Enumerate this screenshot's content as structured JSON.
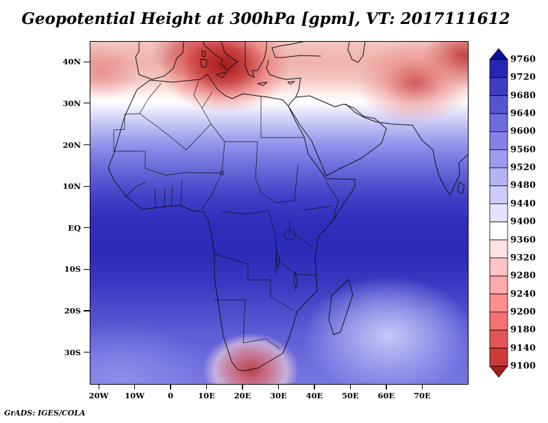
{
  "title": "Geopotential Height at 300hPa [gpm], VT: 2017111612",
  "credit": "GrADS: IGES/COLA",
  "map": {
    "lat_ticks": [
      {
        "label": "40N",
        "lat": 40
      },
      {
        "label": "30N",
        "lat": 30
      },
      {
        "label": "20N",
        "lat": 20
      },
      {
        "label": "10N",
        "lat": 10
      },
      {
        "label": "EQ",
        "lat": 0
      },
      {
        "label": "10S",
        "lat": -10
      },
      {
        "label": "20S",
        "lat": -20
      },
      {
        "label": "30S",
        "lat": -30
      }
    ],
    "lon_ticks": [
      {
        "label": "20W",
        "lon": -20
      },
      {
        "label": "10W",
        "lon": -10
      },
      {
        "label": "0",
        "lon": 0
      },
      {
        "label": "10E",
        "lon": 10
      },
      {
        "label": "20E",
        "lon": 20
      },
      {
        "label": "30E",
        "lon": 30
      },
      {
        "label": "40E",
        "lon": 40
      },
      {
        "label": "50E",
        "lon": 50
      },
      {
        "label": "60E",
        "lon": 60
      },
      {
        "label": "70E",
        "lon": 70
      }
    ]
  },
  "colorbar": {
    "labels": [
      "9760",
      "9720",
      "9680",
      "9640",
      "9600",
      "9560",
      "9520",
      "9480",
      "9440",
      "9400",
      "9360",
      "9320",
      "9280",
      "9240",
      "9200",
      "9180",
      "9140",
      "9100"
    ],
    "colors": [
      "#0f0fa0",
      "#2727b4",
      "#3e3ec4",
      "#5555d0",
      "#6c6cdc",
      "#8383e6",
      "#9b9bef",
      "#b3b3f6",
      "#cbcbfb",
      "#e3e3fe",
      "#ffffff",
      "#ffe2e2",
      "#ffc6c6",
      "#ffaaaa",
      "#ff8e8e",
      "#f47272",
      "#e35656",
      "#cd3a3a",
      "#a81e1e"
    ]
  },
  "chart_data": {
    "type": "heatmap",
    "title": "Geopotential Height at 300hPa [gpm], VT: 2017111612",
    "variable": "Geopotential Height",
    "level": "300hPa",
    "units": "gpm",
    "valid_time": "2017111612",
    "lon_range": [
      -22.5,
      82.5
    ],
    "lat_range": [
      -37.5,
      45
    ],
    "lon_tick_labels": [
      "20W",
      "10W",
      "0",
      "10E",
      "20E",
      "30E",
      "40E",
      "50E",
      "60E",
      "70E"
    ],
    "lat_tick_labels": [
      "40N",
      "30N",
      "20N",
      "10N",
      "EQ",
      "10S",
      "20S",
      "30S"
    ],
    "colorbar_levels": [
      9760,
      9720,
      9680,
      9640,
      9600,
      9560,
      9520,
      9480,
      9440,
      9400,
      9360,
      9320,
      9280,
      9240,
      9200,
      9180,
      9140,
      9100
    ],
    "colorbar_orientation": "vertical-right",
    "features": [
      {
        "description": "broad maximum over equatorial Africa (10N-15S)",
        "approx_value": "> 9720 gpm"
      },
      {
        "description": "strong minimum over central Mediterranean (~15E, 39N)",
        "approx_value": "< 9140 gpm"
      },
      {
        "description": "minimum over southwest Asia / NE of Arabian Sea (~65E, 33N)",
        "approx_value": "~9200-9320 gpm"
      },
      {
        "description": "red minimum over South Africa (~22E, 33S)",
        "approx_value": "~9280-9360 gpm"
      },
      {
        "description": "relative minimum over SW Indian Ocean (~60E, 25S)",
        "approx_value": "~9560-9600 gpm"
      },
      {
        "description": "pink band along 35-45N across North Africa / Mediterranean",
        "approx_value": "9200-9400 gpm"
      }
    ],
    "renderer": "GrADS: IGES/COLA"
  }
}
